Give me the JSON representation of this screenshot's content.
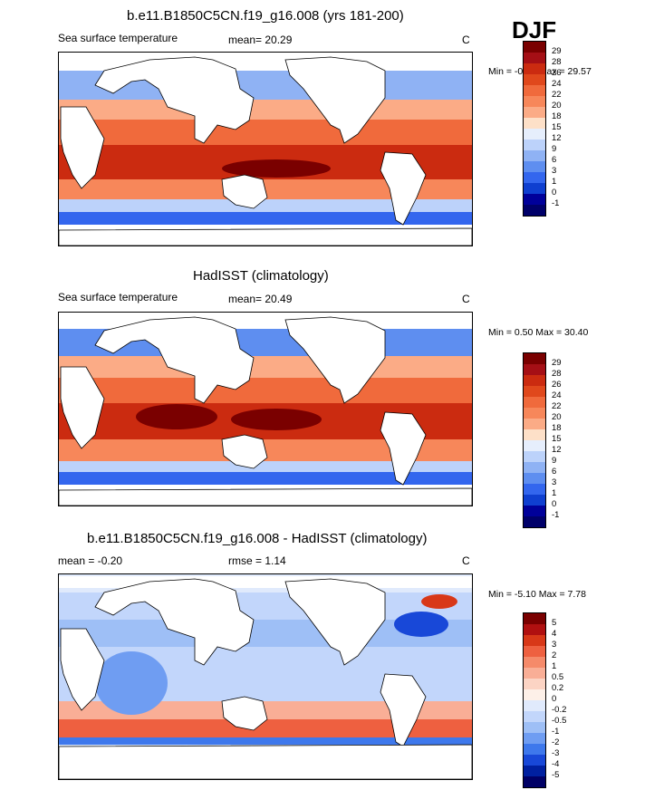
{
  "season": "DJF",
  "panels": [
    {
      "title": "b.e11.B1850C5CN.f19_g16.008 (yrs 181-200)",
      "left_label": "Sea surface temperature",
      "stat1": "mean=  20.29",
      "stat2": "",
      "units": "C",
      "minmax": "Min =  -0.92 Max =  29.57",
      "levels": [
        "29",
        "28",
        "26",
        "24",
        "22",
        "20",
        "18",
        "15",
        "12",
        "9",
        "6",
        "3",
        "1",
        "0",
        "-1"
      ]
    },
    {
      "title": "HadISST (climatology)",
      "left_label": "Sea surface temperature",
      "stat1": "mean=  20.49",
      "stat2": "",
      "units": "C",
      "minmax": "Min =   0.50 Max =  30.40",
      "levels": [
        "29",
        "28",
        "26",
        "24",
        "22",
        "20",
        "18",
        "15",
        "12",
        "9",
        "6",
        "3",
        "1",
        "0",
        "-1"
      ]
    },
    {
      "title": "b.e11.B1850C5CN.f19_g16.008 - HadISST (climatology)",
      "left_label": "mean =  -0.20",
      "stat1": "",
      "stat2": "rmse =   1.14",
      "units": "C",
      "minmax": "Min =  -5.10 Max =   7.78",
      "levels": [
        "5",
        "4",
        "3",
        "2",
        "1",
        "0.5",
        "0.2",
        "0",
        "-0.2",
        "-0.5",
        "-1",
        "-2",
        "-3",
        "-4",
        "-5"
      ]
    }
  ],
  "colors": {
    "sst": [
      "#7a0000",
      "#a50f15",
      "#cb2b10",
      "#e0481c",
      "#f06a3c",
      "#f7875a",
      "#fbab86",
      "#fde0c8",
      "#e6eefc",
      "#bcd2fa",
      "#8fb2f4",
      "#5e8ef0",
      "#3366ee",
      "#0f3fd0",
      "#00009a",
      "#00006a"
    ],
    "diff": [
      "#7a0000",
      "#b01010",
      "#d83818",
      "#ee6040",
      "#f58a6a",
      "#f9ae96",
      "#fcd4c4",
      "#fdf0e8",
      "#e0eafc",
      "#c2d6fb",
      "#9ebff6",
      "#6f9df2",
      "#3e78ec",
      "#1848d8",
      "#0020a0",
      "#000066"
    ]
  }
}
